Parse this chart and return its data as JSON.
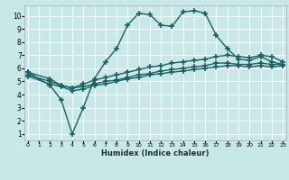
{
  "xlabel": "Humidex (Indice chaleur)",
  "bg_color": "#c8e8e8",
  "grid_color": "#ffffff",
  "line_color": "#1a6060",
  "x_ticks": [
    0,
    1,
    2,
    3,
    4,
    5,
    6,
    7,
    8,
    9,
    10,
    11,
    12,
    13,
    14,
    15,
    16,
    17,
    18,
    19,
    20,
    21,
    22,
    23
  ],
  "y_ticks": [
    1,
    2,
    3,
    4,
    5,
    6,
    7,
    8,
    9,
    10
  ],
  "xlim": [
    -0.3,
    23.3
  ],
  "ylim": [
    0.5,
    10.8
  ],
  "series": [
    {
      "x": [
        0,
        2,
        3,
        4,
        5,
        6,
        7,
        8,
        9,
        10,
        11,
        12,
        13,
        14,
        15,
        16,
        17,
        18,
        19,
        20,
        21,
        22,
        23
      ],
      "y": [
        5.7,
        4.7,
        3.6,
        1.0,
        3.0,
        5.2,
        6.5,
        7.5,
        9.3,
        10.2,
        10.1,
        9.3,
        9.2,
        10.3,
        10.4,
        10.2,
        8.5,
        7.5,
        6.7,
        6.6,
        6.9,
        6.5,
        6.3
      ],
      "marker": "+",
      "markersize": 4,
      "linewidth": 1.0
    },
    {
      "x": [
        0,
        2,
        3,
        4,
        5,
        6,
        7,
        8,
        9,
        10,
        11,
        12,
        13,
        14,
        15,
        16,
        17,
        18,
        19,
        20,
        21,
        22,
        23
      ],
      "y": [
        5.7,
        5.2,
        4.7,
        4.5,
        4.8,
        5.1,
        5.3,
        5.5,
        5.7,
        5.9,
        6.1,
        6.2,
        6.4,
        6.5,
        6.6,
        6.7,
        6.9,
        7.0,
        6.9,
        6.8,
        7.0,
        6.9,
        6.5
      ],
      "marker": "+",
      "markersize": 4,
      "linewidth": 1.0
    },
    {
      "x": [
        0,
        2,
        3,
        4,
        5,
        6,
        7,
        8,
        9,
        10,
        11,
        12,
        13,
        14,
        15,
        16,
        17,
        18,
        19,
        20,
        21,
        22,
        23
      ],
      "y": [
        5.5,
        5.0,
        4.7,
        4.5,
        4.6,
        4.8,
        5.0,
        5.1,
        5.3,
        5.5,
        5.6,
        5.8,
        5.9,
        6.0,
        6.1,
        6.2,
        6.4,
        6.4,
        6.3,
        6.3,
        6.4,
        6.3,
        6.3
      ],
      "marker": "+",
      "markersize": 4,
      "linewidth": 1.0
    },
    {
      "x": [
        0,
        2,
        3,
        4,
        5,
        6,
        7,
        8,
        9,
        10,
        11,
        12,
        13,
        14,
        15,
        16,
        17,
        18,
        19,
        20,
        21,
        22,
        23
      ],
      "y": [
        5.4,
        4.8,
        4.6,
        4.3,
        4.4,
        4.7,
        4.8,
        5.0,
        5.2,
        5.3,
        5.5,
        5.6,
        5.7,
        5.8,
        5.9,
        6.0,
        6.1,
        6.2,
        6.2,
        6.1,
        6.2,
        6.1,
        6.2
      ],
      "marker": "+",
      "markersize": 4,
      "linewidth": 1.0
    }
  ]
}
